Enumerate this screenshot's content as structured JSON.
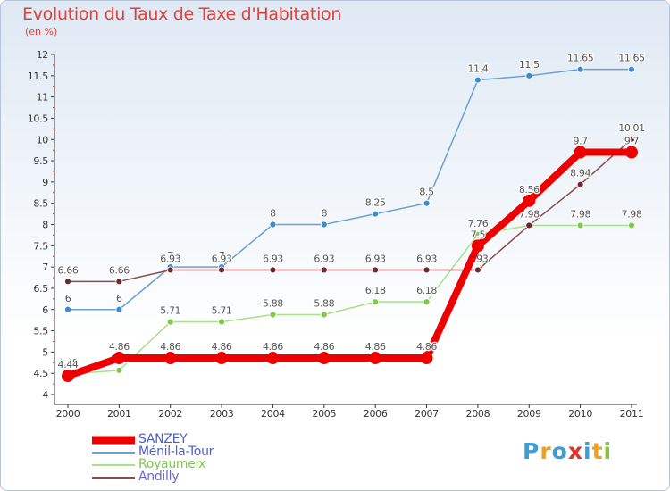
{
  "header": {
    "title": "Evolution du Taux de Taxe d'Habitation",
    "unit": "(en %)"
  },
  "logo": {
    "text": "Proxiti",
    "letters": [
      "P",
      "r",
      "o",
      "x",
      "i",
      "t",
      "i"
    ],
    "colors": [
      "#3b9fd6",
      "#f0a020",
      "#3b9fd6",
      "#e0312c",
      "#3b9fd6",
      "#f0a020",
      "#8bc23f"
    ]
  },
  "chart_data": {
    "type": "line",
    "categories": [
      "2000",
      "2001",
      "2002",
      "2003",
      "2004",
      "2005",
      "2006",
      "2007",
      "2008",
      "2009",
      "2010",
      "2011"
    ],
    "ylim": [
      4,
      12
    ],
    "yticks": [
      "4",
      "4.5",
      "5",
      "5.5",
      "6",
      "6.5",
      "7",
      "7.5",
      "8",
      "8.5",
      "9",
      "9.5",
      "10",
      "10.5",
      "11",
      "11.5",
      "12"
    ],
    "grid": false,
    "legend_position": "bottom-left",
    "series": [
      {
        "name": "Ménil-la-Tour",
        "color": "#6b9fd4",
        "dot": "#3b8bcf",
        "values": [
          6,
          6,
          7,
          7,
          8,
          8,
          8.25,
          8.5,
          11.4,
          11.5,
          11.65,
          11.65
        ],
        "labels": [
          "6",
          "6",
          "7",
          "7",
          "8",
          "8",
          "8.25",
          "8.5",
          "11.4",
          "11.5",
          "11.65",
          "11.65"
        ]
      },
      {
        "name": "Royaumeix",
        "color": "#a8e08a",
        "dot": "#7ec84c",
        "values": [
          4.48,
          4.57,
          5.71,
          5.71,
          5.88,
          5.88,
          6.18,
          6.18,
          7.76,
          7.98,
          7.98,
          7.98
        ],
        "labels": [
          "4.48",
          "4.57",
          "5.71",
          "5.71",
          "5.88",
          "5.88",
          "6.18",
          "6.18",
          "7.76",
          "7.98",
          "7.98",
          "7.98"
        ]
      },
      {
        "name": "Andilly",
        "color": "#8c4a4a",
        "dot": "#6e2a2a",
        "values": [
          6.66,
          6.66,
          6.93,
          6.93,
          6.93,
          6.93,
          6.93,
          6.93,
          6.93,
          7.98,
          8.94,
          10.01
        ],
        "labels": [
          "6.66",
          "6.66",
          "6.93",
          "6.93",
          "6.93",
          "6.93",
          "6.93",
          "6.93",
          "6.93",
          "7.98",
          "8.94",
          "10.01"
        ]
      },
      {
        "name": "SANZEY",
        "color": "#ee0000",
        "dot": "#ee0000",
        "values": [
          4.44,
          4.86,
          4.86,
          4.86,
          4.86,
          4.86,
          4.86,
          4.86,
          7.5,
          8.56,
          9.7,
          9.7
        ],
        "labels": [
          "4.44",
          "4.86",
          "4.86",
          "4.86",
          "4.86",
          "4.86",
          "4.86",
          "4.86",
          "7.5",
          "8.56",
          "9.7",
          "9.7"
        ]
      }
    ],
    "legend": [
      {
        "name": "SANZEY",
        "color": "#ee0000"
      },
      {
        "name": "Ménil-la-Tour",
        "color": "#6b9fd4"
      },
      {
        "name": "Royaumeix",
        "color": "#a8e08a"
      },
      {
        "name": "Andilly",
        "color": "#8c4a4a"
      }
    ]
  }
}
